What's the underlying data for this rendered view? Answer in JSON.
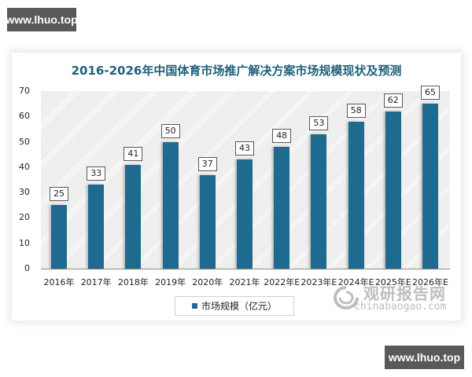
{
  "watermarks": {
    "top": "www.lhuo.top",
    "bottom": "www.lhuo.top"
  },
  "logo": {
    "cn": "观研报告网",
    "en": "chinabaogao.com"
  },
  "chart": {
    "title": "2016-2026年中国体育市场推广解决方案市场规模现状及预测",
    "yticks": [
      "0",
      "10",
      "20",
      "30",
      "40",
      "50",
      "60",
      "70"
    ],
    "categories": [
      "2016年",
      "2017年",
      "2018年",
      "2019年",
      "2020年",
      "2021年",
      "2022年E",
      "2023年E",
      "2024年E",
      "2025年E",
      "2026年E"
    ],
    "values": [
      "25",
      "33",
      "41",
      "50",
      "37",
      "43",
      "48",
      "53",
      "58",
      "62",
      "65"
    ],
    "legend": "市场规模（亿元）",
    "bar_color": "#1f6b8f"
  },
  "chart_data": {
    "type": "bar",
    "title": "2016-2026年中国体育市场推广解决方案市场规模现状及预测",
    "categories": [
      "2016年",
      "2017年",
      "2018年",
      "2019年",
      "2020年",
      "2021年",
      "2022年E",
      "2023年E",
      "2024年E",
      "2025年E",
      "2026年E"
    ],
    "series": [
      {
        "name": "市场规模（亿元）",
        "values": [
          25,
          33,
          41,
          50,
          37,
          43,
          48,
          53,
          58,
          62,
          65
        ],
        "color": "#1f6b8f"
      }
    ],
    "xlabel": "",
    "ylabel": "",
    "ylim": [
      0,
      70
    ],
    "yticks": [
      0,
      10,
      20,
      30,
      40,
      50,
      60,
      70
    ],
    "grid": false,
    "legend_position": "bottom",
    "data_labels": true
  }
}
